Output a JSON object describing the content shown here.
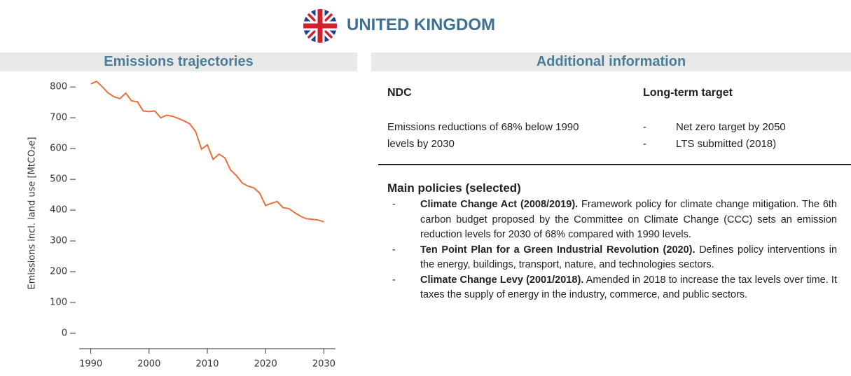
{
  "header": {
    "title": "UNITED KINGDOM"
  },
  "sections": {
    "emissions_title": "Emissions trajectories",
    "additional_title": "Additional information"
  },
  "ndc": {
    "heading": "NDC",
    "text": "Emissions reductions of 68% below 1990 levels by 2030"
  },
  "long_term": {
    "heading": "Long-term target",
    "items": [
      "Net zero target by 2050",
      "LTS submitted (2018)"
    ]
  },
  "policies": {
    "heading": "Main policies (selected)",
    "items": [
      {
        "name": "Climate Change Act (2008/2019).",
        "text": "Framework policy for climate change mitigation. The 6th carbon budget proposed by the Committee on Climate Change (CCC) sets an emission reduction levels for 2030 of 68% compared with 1990 levels."
      },
      {
        "name": "Ten Point Plan for a Green Industrial Revolution (2020).",
        "text": "Defines policy interventions in the energy, buildings, transport, nature, and technologies sectors."
      },
      {
        "name": "Climate Change Levy (2001/2018).",
        "text": "Amended in 2018 to increase the tax levels over time. It taxes the supply of energy in the industry, commerce, and public sectors."
      }
    ]
  },
  "chart_data": {
    "type": "line",
    "y_label": "Emissions incl. land use [MtCO₂e]",
    "x": [
      1990,
      1991,
      1992,
      1993,
      1994,
      1995,
      1996,
      1997,
      1998,
      1999,
      2000,
      2001,
      2002,
      2003,
      2004,
      2005,
      2006,
      2007,
      2008,
      2009,
      2010,
      2011,
      2012,
      2013,
      2014,
      2015,
      2016,
      2017,
      2018,
      2019,
      2020,
      2021,
      2022,
      2023,
      2024,
      2025,
      2026,
      2027,
      2028,
      2029,
      2030
    ],
    "series": [
      {
        "color": "#e8703a",
        "values": [
          810,
          818,
          800,
          780,
          768,
          762,
          780,
          755,
          752,
          722,
          720,
          722,
          700,
          708,
          705,
          698,
          690,
          680,
          655,
          598,
          612,
          565,
          582,
          570,
          530,
          512,
          488,
          478,
          472,
          455,
          415,
          422,
          428,
          408,
          405,
          392,
          380,
          372,
          370,
          368,
          362
        ]
      }
    ],
    "xlim": [
      1988,
      2032
    ],
    "xticks": [
      1990,
      2000,
      2010,
      2020,
      2030
    ],
    "ylim": [
      -50,
      830
    ],
    "yticks": [
      0,
      100,
      200,
      300,
      400,
      500,
      600,
      700,
      800
    ]
  }
}
